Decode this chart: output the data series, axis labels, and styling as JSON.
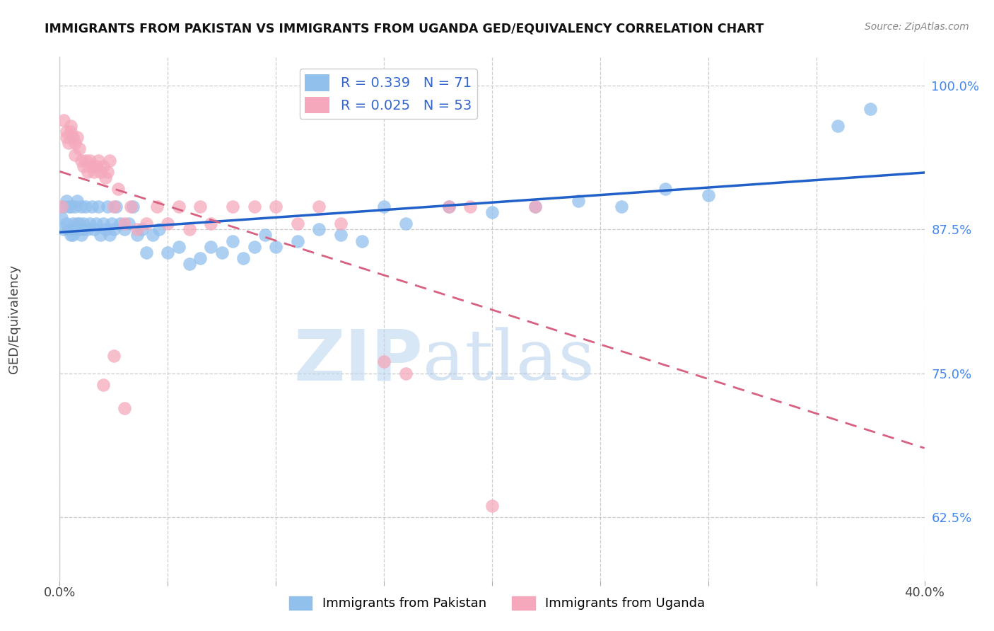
{
  "title": "IMMIGRANTS FROM PAKISTAN VS IMMIGRANTS FROM UGANDA GED/EQUIVALENCY CORRELATION CHART",
  "source": "Source: ZipAtlas.com",
  "ylabel": "GED/Equivalency",
  "ytick_labels": [
    "100.0%",
    "87.5%",
    "75.0%",
    "62.5%"
  ],
  "ytick_values": [
    1.0,
    0.875,
    0.75,
    0.625
  ],
  "xlim": [
    0.0,
    0.4
  ],
  "ylim": [
    0.57,
    1.025
  ],
  "R_pakistan": 0.339,
  "N_pakistan": 71,
  "R_uganda": 0.025,
  "N_uganda": 53,
  "color_pakistan": "#92C0ED",
  "color_uganda": "#F5A8BC",
  "line_color_pakistan": "#2060C8",
  "line_color_uganda": "#D86080",
  "watermark_zip": "ZIP",
  "watermark_atlas": "atlas",
  "pakistan_x": [
    0.001,
    0.002,
    0.002,
    0.003,
    0.003,
    0.004,
    0.004,
    0.005,
    0.005,
    0.006,
    0.006,
    0.007,
    0.007,
    0.008,
    0.008,
    0.009,
    0.009,
    0.01,
    0.01,
    0.011,
    0.011,
    0.012,
    0.013,
    0.014,
    0.015,
    0.016,
    0.017,
    0.018,
    0.019,
    0.02,
    0.021,
    0.022,
    0.023,
    0.024,
    0.025,
    0.026,
    0.028,
    0.03,
    0.032,
    0.034,
    0.036,
    0.038,
    0.04,
    0.043,
    0.046,
    0.05,
    0.055,
    0.06,
    0.065,
    0.07,
    0.075,
    0.08,
    0.085,
    0.09,
    0.095,
    0.1,
    0.11,
    0.12,
    0.13,
    0.14,
    0.15,
    0.16,
    0.18,
    0.2,
    0.22,
    0.24,
    0.26,
    0.28,
    0.3,
    0.36,
    0.375
  ],
  "pakistan_y": [
    0.885,
    0.895,
    0.875,
    0.9,
    0.88,
    0.895,
    0.875,
    0.87,
    0.895,
    0.87,
    0.88,
    0.875,
    0.895,
    0.88,
    0.9,
    0.875,
    0.88,
    0.87,
    0.895,
    0.875,
    0.88,
    0.895,
    0.875,
    0.88,
    0.895,
    0.875,
    0.88,
    0.895,
    0.87,
    0.88,
    0.875,
    0.895,
    0.87,
    0.88,
    0.875,
    0.895,
    0.88,
    0.875,
    0.88,
    0.895,
    0.87,
    0.875,
    0.855,
    0.87,
    0.875,
    0.855,
    0.86,
    0.845,
    0.85,
    0.86,
    0.855,
    0.865,
    0.85,
    0.86,
    0.87,
    0.86,
    0.865,
    0.875,
    0.87,
    0.865,
    0.895,
    0.88,
    0.895,
    0.89,
    0.895,
    0.9,
    0.895,
    0.91,
    0.905,
    0.965,
    0.98
  ],
  "uganda_x": [
    0.001,
    0.002,
    0.003,
    0.003,
    0.004,
    0.005,
    0.005,
    0.006,
    0.007,
    0.007,
    0.008,
    0.009,
    0.01,
    0.011,
    0.012,
    0.013,
    0.014,
    0.015,
    0.016,
    0.017,
    0.018,
    0.019,
    0.02,
    0.021,
    0.022,
    0.023,
    0.025,
    0.027,
    0.03,
    0.033,
    0.036,
    0.04,
    0.045,
    0.05,
    0.055,
    0.06,
    0.065,
    0.07,
    0.08,
    0.09,
    0.1,
    0.11,
    0.12,
    0.13,
    0.15,
    0.16,
    0.18,
    0.19,
    0.2,
    0.22,
    0.02,
    0.025,
    0.03
  ],
  "uganda_y": [
    0.895,
    0.97,
    0.96,
    0.955,
    0.95,
    0.965,
    0.96,
    0.955,
    0.95,
    0.94,
    0.955,
    0.945,
    0.935,
    0.93,
    0.935,
    0.925,
    0.935,
    0.93,
    0.925,
    0.93,
    0.935,
    0.925,
    0.93,
    0.92,
    0.925,
    0.935,
    0.895,
    0.91,
    0.88,
    0.895,
    0.875,
    0.88,
    0.895,
    0.88,
    0.895,
    0.875,
    0.895,
    0.88,
    0.895,
    0.895,
    0.895,
    0.88,
    0.895,
    0.88,
    0.76,
    0.75,
    0.895,
    0.895,
    0.635,
    0.895,
    0.74,
    0.765,
    0.72
  ]
}
